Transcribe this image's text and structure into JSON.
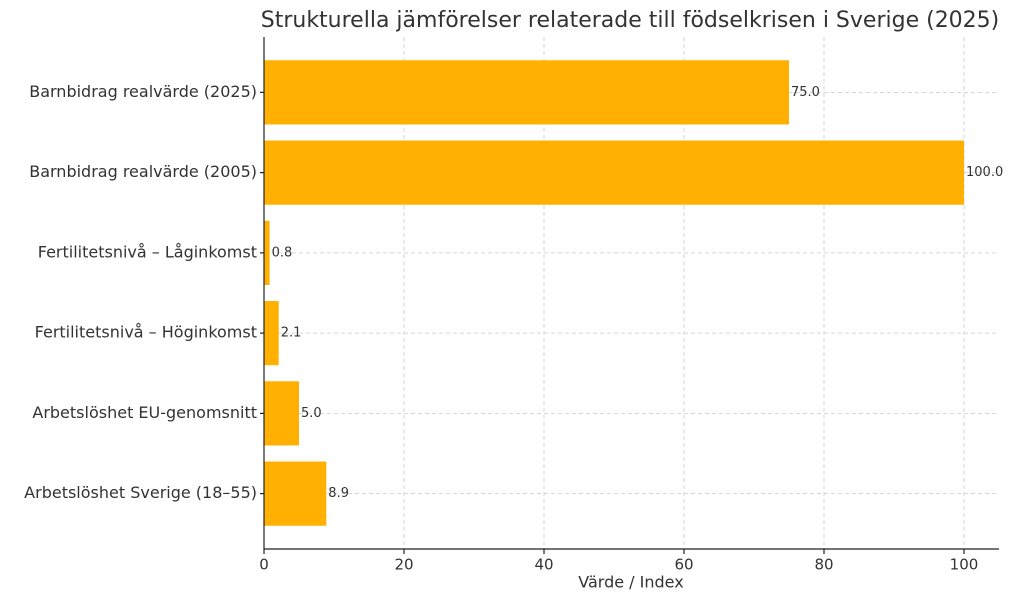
{
  "chart_data": {
    "type": "barh",
    "title": "Strukturella jämförelser relaterade till födselkrisen i Sverige (2025)",
    "x_label": "Värde / Index",
    "categories": [
      "Barnbidrag realvärde (2025)",
      "Barnbidrag realvärde (2005)",
      "Fertilitetsnivå – Låginkomst",
      "Fertilitetsnivå – Höginkomst",
      "Arbetslöshet EU-genomsnitt",
      "Arbetslöshet Sverige (18–55)"
    ],
    "values": [
      75,
      100,
      0.8,
      2.1,
      5,
      8.9
    ],
    "value_labels": [
      "75.0",
      "100.0",
      "0.8",
      "2.1",
      "5.0",
      "8.9"
    ],
    "color": "#ffb000",
    "xlim": [
      0,
      105
    ],
    "xticks": [
      0,
      20,
      40,
      60,
      80,
      100
    ],
    "grid": true
  }
}
